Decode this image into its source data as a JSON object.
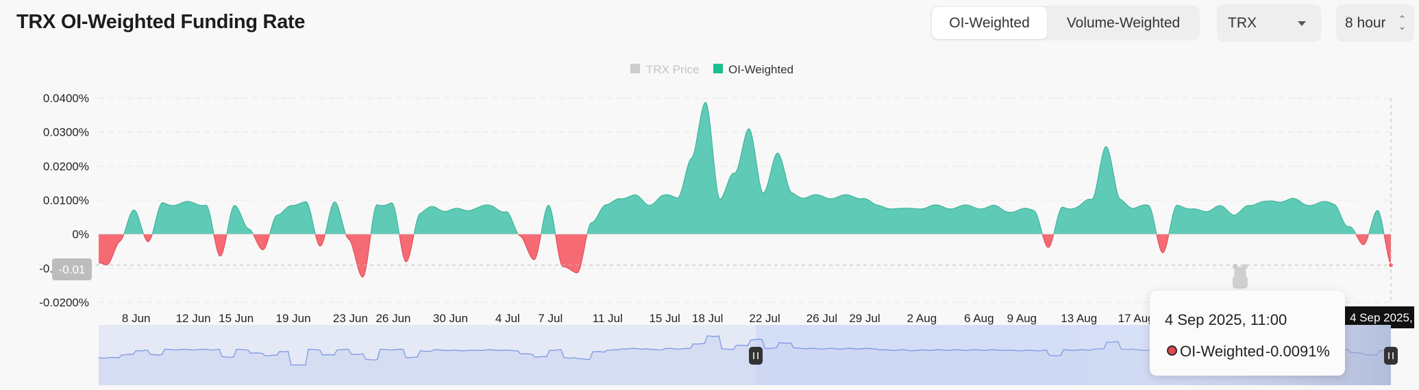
{
  "header": {
    "title": "TRX OI-Weighted Funding Rate"
  },
  "controls": {
    "weighting_options": [
      "OI-Weighted",
      "Volume-Weighted"
    ],
    "selected_weighting": "OI-Weighted",
    "coin_select": "TRX",
    "interval_select": "8 hour"
  },
  "colors": {
    "positive": "#5fcbb6",
    "positive_line": "#3fb39c",
    "negative": "#f66b73",
    "negative_line": "#e2505a",
    "legend_price": "#cccccc",
    "legend_oi": "#1bbf8d",
    "navigator_line": "#7c98e0",
    "navigator_fill": "#e4e9f5"
  },
  "chart_data": {
    "type": "area",
    "title": "TRX OI-Weighted Funding Rate",
    "legend": [
      {
        "name": "TRX Price",
        "color": "#cccccc",
        "enabled": false
      },
      {
        "name": "OI-Weighted",
        "color": "#1bbf8d",
        "enabled": true
      }
    ],
    "legend_position": "top-center",
    "y_unit": "%",
    "ylim": [
      -0.02,
      0.04
    ],
    "y_ticks": [
      "0.0400%",
      "0.0300%",
      "0.0200%",
      "0.0100%",
      "0%",
      "-0.0100%",
      "-0.0200%"
    ],
    "y_tick_values": [
      0.04,
      0.03,
      0.02,
      0.01,
      0,
      -0.01,
      -0.02
    ],
    "x_range": [
      "2025-06-06",
      "2025-09-04"
    ],
    "x_ticks": [
      "8 Jun",
      "12 Jun",
      "15 Jun",
      "19 Jun",
      "23 Jun",
      "26 Jun",
      "30 Jun",
      "4 Jul",
      "7 Jul",
      "11 Jul",
      "15 Jul",
      "18 Jul",
      "22 Jul",
      "26 Jul",
      "29 Jul",
      "2 Aug",
      "6 Aug",
      "9 Aug",
      "13 Aug",
      "17 Aug"
    ],
    "x_tick_dates": [
      "2025-06-08",
      "2025-06-12",
      "2025-06-15",
      "2025-06-19",
      "2025-06-23",
      "2025-06-26",
      "2025-06-30",
      "2025-07-04",
      "2025-07-07",
      "2025-07-11",
      "2025-07-15",
      "2025-07-18",
      "2025-07-22",
      "2025-07-26",
      "2025-07-29",
      "2025-08-02",
      "2025-08-06",
      "2025-08-09",
      "2025-08-13",
      "2025-08-17"
    ],
    "grid": "horizontal dashed",
    "crosshair": {
      "x": "2025-09-04 11:00",
      "y_label": "-0.01",
      "x_label": "4 Sep 2025, 11:00"
    },
    "series": [
      {
        "name": "OI-Weighted",
        "x": [
          "2025-06-06",
          "2025-06-07",
          "2025-06-08",
          "2025-06-09",
          "2025-06-10",
          "2025-06-11",
          "2025-06-12",
          "2025-06-13",
          "2025-06-14",
          "2025-06-15",
          "2025-06-16",
          "2025-06-17",
          "2025-06-18",
          "2025-06-19",
          "2025-06-20",
          "2025-06-21",
          "2025-06-22",
          "2025-06-23",
          "2025-06-24",
          "2025-06-25",
          "2025-06-26",
          "2025-06-27",
          "2025-06-28",
          "2025-06-29",
          "2025-06-30",
          "2025-07-01",
          "2025-07-02",
          "2025-07-03",
          "2025-07-04",
          "2025-07-05",
          "2025-07-06",
          "2025-07-07",
          "2025-07-08",
          "2025-07-09",
          "2025-07-10",
          "2025-07-11",
          "2025-07-12",
          "2025-07-13",
          "2025-07-14",
          "2025-07-15",
          "2025-07-16",
          "2025-07-17",
          "2025-07-18",
          "2025-07-19",
          "2025-07-20",
          "2025-07-21",
          "2025-07-22",
          "2025-07-23",
          "2025-07-24",
          "2025-07-25",
          "2025-07-26",
          "2025-07-27",
          "2025-07-28",
          "2025-07-29",
          "2025-07-30",
          "2025-07-31",
          "2025-08-01",
          "2025-08-02",
          "2025-08-03",
          "2025-08-04",
          "2025-08-05",
          "2025-08-06",
          "2025-08-07",
          "2025-08-08",
          "2025-08-09",
          "2025-08-10",
          "2025-08-11",
          "2025-08-12",
          "2025-08-13",
          "2025-08-14",
          "2025-08-15",
          "2025-08-16",
          "2025-08-17",
          "2025-08-18",
          "2025-08-19",
          "2025-08-20",
          "2025-08-21",
          "2025-08-22",
          "2025-08-23",
          "2025-08-24",
          "2025-08-25",
          "2025-08-26",
          "2025-08-27",
          "2025-08-28",
          "2025-08-29",
          "2025-08-30",
          "2025-08-31",
          "2025-09-01",
          "2025-09-02",
          "2025-09-03",
          "2025-09-04"
        ],
        "values": [
          -0.009,
          -0.002,
          0.007,
          -0.002,
          0.009,
          0.009,
          0.009,
          0.009,
          -0.007,
          0.009,
          0.001,
          -0.004,
          0.005,
          0.009,
          0.009,
          -0.003,
          0.009,
          -0.001,
          -0.013,
          0.009,
          0.009,
          -0.008,
          0.006,
          0.008,
          0.007,
          0.007,
          0.008,
          0.008,
          0.007,
          -0.001,
          -0.007,
          0.008,
          -0.009,
          -0.012,
          0.004,
          0.008,
          0.011,
          0.011,
          0.009,
          0.011,
          0.011,
          0.022,
          0.039,
          0.01,
          0.018,
          0.031,
          0.012,
          0.024,
          0.012,
          0.011,
          0.011,
          0.011,
          0.011,
          0.011,
          0.008,
          0.008,
          0.007,
          0.008,
          0.008,
          0.008,
          0.008,
          0.008,
          0.008,
          0.007,
          0.007,
          0.007,
          -0.004,
          0.008,
          0.008,
          0.01,
          0.026,
          0.01,
          0.008,
          0.008,
          -0.005,
          0.008,
          0.008,
          0.006,
          0.009,
          0.005,
          0.009,
          0.009,
          0.01,
          0.01,
          0.009,
          0.009,
          0.009,
          0.002,
          -0.003,
          0.007,
          -0.0091
        ]
      }
    ],
    "navigator": {
      "selected_start": "2025-07-22",
      "selected_end": "2025-09-04"
    }
  },
  "tooltip": {
    "date": "4 Sep 2025, 11:00",
    "series_name": "OI-Weighted",
    "value": "-0.0091%"
  }
}
